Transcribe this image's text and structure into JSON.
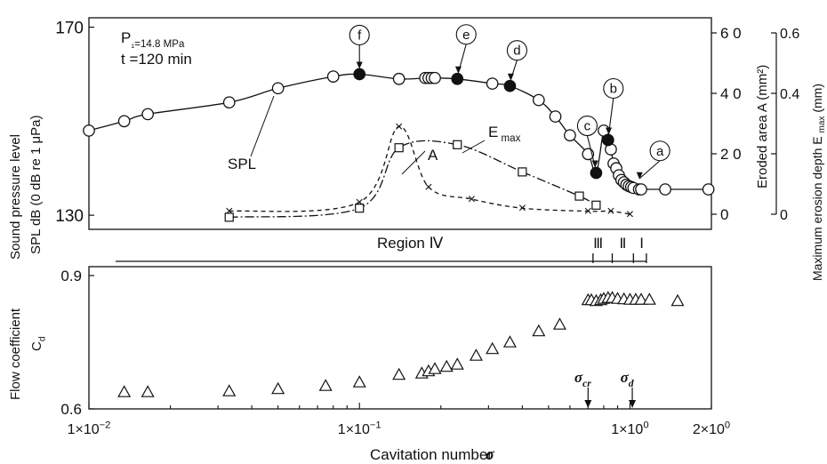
{
  "chart_data": [
    {
      "type": "line",
      "panel": "top",
      "xscale": "log",
      "xlim": [
        0.01,
        2.0
      ],
      "annotations": {
        "pressure": "P₁=14.8 MPa",
        "time": "t =120 min",
        "spl_label": "SPL",
        "a_label": "A",
        "emax_label": "E",
        "emax_sub": "max",
        "region_iv": "Region Ⅳ",
        "region_iii": "Ⅲ",
        "region_ii": "Ⅱ",
        "region_i": "Ⅰ"
      },
      "point_letters": [
        {
          "letter": "f",
          "x": 0.1,
          "y": 160
        },
        {
          "letter": "e",
          "x": 0.23,
          "y": 159
        },
        {
          "letter": "d",
          "x": 0.36,
          "y": 157.5
        },
        {
          "letter": "c",
          "x": 0.75,
          "y": 139
        },
        {
          "letter": "b",
          "x": 0.83,
          "y": 146
        },
        {
          "letter": "a",
          "x": 1.06,
          "y": 136.5
        }
      ],
      "region_boundaries": [
        0.73,
        0.86,
        1.03,
        1.15
      ],
      "left_axis": {
        "label_line1": "Sound pressure level",
        "label_line2": "SPL dB (0 dB re 1 μPa)",
        "ylim": [
          127,
          172
        ],
        "ticks": [
          130,
          170
        ],
        "tick_labels": [
          "130",
          "170"
        ]
      },
      "area_axis": {
        "label": "Eroded area A (mm²)",
        "ylim": [
          -5,
          65
        ],
        "ticks": [
          0,
          20,
          40,
          60
        ],
        "tick_labels": [
          "0",
          "2 0",
          "4 0",
          "6 0"
        ]
      },
      "emax_axis": {
        "label": "Maximum erosion depth E",
        "label_sub": "max",
        "label_unit": "(mm)",
        "ylim": [
          -0.05,
          0.65
        ],
        "ticks": [
          0,
          0.2,
          0.4,
          0.6
        ],
        "tick_labels": [
          "0",
          "",
          "0.4",
          "0.6"
        ]
      },
      "series": [
        {
          "name": "SPL",
          "marker": "circle",
          "axis": "left",
          "open": [
            {
              "x": 0.01,
              "y": 148
            },
            {
              "x": 0.0135,
              "y": 150
            },
            {
              "x": 0.0165,
              "y": 151.5
            },
            {
              "x": 0.033,
              "y": 154
            },
            {
              "x": 0.05,
              "y": 157
            },
            {
              "x": 0.08,
              "y": 159.5
            },
            {
              "x": 0.14,
              "y": 159
            },
            {
              "x": 0.175,
              "y": 159.2
            },
            {
              "x": 0.18,
              "y": 159.2
            },
            {
              "x": 0.185,
              "y": 159.2
            },
            {
              "x": 0.19,
              "y": 159.2
            },
            {
              "x": 0.31,
              "y": 158
            },
            {
              "x": 0.46,
              "y": 154.5
            },
            {
              "x": 0.53,
              "y": 151
            },
            {
              "x": 0.6,
              "y": 147
            },
            {
              "x": 0.7,
              "y": 143
            },
            {
              "x": 0.8,
              "y": 148
            },
            {
              "x": 0.85,
              "y": 144
            },
            {
              "x": 0.87,
              "y": 141
            },
            {
              "x": 0.89,
              "y": 140
            },
            {
              "x": 0.91,
              "y": 138.5
            },
            {
              "x": 0.93,
              "y": 137.5
            },
            {
              "x": 0.95,
              "y": 137
            },
            {
              "x": 0.97,
              "y": 136.5
            },
            {
              "x": 0.99,
              "y": 136.2
            },
            {
              "x": 1.01,
              "y": 136
            },
            {
              "x": 1.03,
              "y": 135.8
            },
            {
              "x": 1.08,
              "y": 135.5
            },
            {
              "x": 1.1,
              "y": 135.5
            },
            {
              "x": 1.35,
              "y": 135.5
            },
            {
              "x": 1.95,
              "y": 135.5
            }
          ],
          "filled": [
            {
              "x": 0.1,
              "y": 160
            },
            {
              "x": 0.23,
              "y": 159
            },
            {
              "x": 0.36,
              "y": 157.5
            },
            {
              "x": 0.75,
              "y": 139
            },
            {
              "x": 0.83,
              "y": 146
            }
          ]
        },
        {
          "name": "A",
          "marker": "square",
          "axis": "area",
          "points": [
            {
              "x": 0.033,
              "y": -1
            },
            {
              "x": 0.1,
              "y": 2
            },
            {
              "x": 0.14,
              "y": 22
            },
            {
              "x": 0.23,
              "y": 23
            },
            {
              "x": 0.4,
              "y": 14
            },
            {
              "x": 0.65,
              "y": 6
            },
            {
              "x": 0.75,
              "y": 3
            }
          ]
        },
        {
          "name": "E max",
          "marker": "x",
          "axis": "emax",
          "points": [
            {
              "x": 0.033,
              "y": 0.01
            },
            {
              "x": 0.1,
              "y": 0.04
            },
            {
              "x": 0.14,
              "y": 0.29
            },
            {
              "x": 0.18,
              "y": 0.09
            },
            {
              "x": 0.26,
              "y": 0.05
            },
            {
              "x": 0.4,
              "y": 0.02
            },
            {
              "x": 0.7,
              "y": 0.01
            },
            {
              "x": 0.85,
              "y": 0.01
            },
            {
              "x": 1.0,
              "y": 0.0
            }
          ]
        }
      ]
    },
    {
      "type": "scatter",
      "panel": "bottom",
      "xscale": "log",
      "xlim": [
        0.01,
        2.0
      ],
      "xlabel": "Cavitation number",
      "xlabel_symbol": "σ",
      "x_ticks": [
        0.01,
        0.1,
        1.0,
        2.0
      ],
      "x_tick_labels": [
        {
          "base": "1×10",
          "exp": "−2"
        },
        {
          "base": "1×10",
          "exp": "−1"
        },
        {
          "base": "1×10",
          "exp": "0"
        },
        {
          "base": "2×10",
          "exp": "0"
        }
      ],
      "ylabel_line1": "Flow coefficient",
      "ylabel_line2": "C",
      "ylabel_sub": "d",
      "ylim": [
        0.6,
        0.92
      ],
      "y_ticks": [
        0.6,
        0.9
      ],
      "y_tick_labels": [
        "0.6",
        "0.9"
      ],
      "markers": [
        {
          "symbol": "σ",
          "sub": "cr",
          "x": 0.7
        },
        {
          "symbol": "σ",
          "sub": "d",
          "x": 1.02
        }
      ],
      "series": [
        {
          "name": "Cd",
          "marker": "triangle",
          "points": [
            {
              "x": 0.0135,
              "y": 0.638
            },
            {
              "x": 0.0165,
              "y": 0.638
            },
            {
              "x": 0.033,
              "y": 0.64
            },
            {
              "x": 0.05,
              "y": 0.645
            },
            {
              "x": 0.075,
              "y": 0.652
            },
            {
              "x": 0.1,
              "y": 0.66
            },
            {
              "x": 0.14,
              "y": 0.677
            },
            {
              "x": 0.17,
              "y": 0.68
            },
            {
              "x": 0.18,
              "y": 0.685
            },
            {
              "x": 0.19,
              "y": 0.69
            },
            {
              "x": 0.21,
              "y": 0.695
            },
            {
              "x": 0.23,
              "y": 0.7
            },
            {
              "x": 0.27,
              "y": 0.72
            },
            {
              "x": 0.31,
              "y": 0.735
            },
            {
              "x": 0.36,
              "y": 0.75
            },
            {
              "x": 0.46,
              "y": 0.775
            },
            {
              "x": 0.55,
              "y": 0.79
            },
            {
              "x": 0.7,
              "y": 0.845
            },
            {
              "x": 0.72,
              "y": 0.845
            },
            {
              "x": 0.75,
              "y": 0.843
            },
            {
              "x": 0.78,
              "y": 0.845
            },
            {
              "x": 0.8,
              "y": 0.848
            },
            {
              "x": 0.83,
              "y": 0.85
            },
            {
              "x": 0.86,
              "y": 0.85
            },
            {
              "x": 0.9,
              "y": 0.848
            },
            {
              "x": 0.95,
              "y": 0.847
            },
            {
              "x": 1.0,
              "y": 0.846
            },
            {
              "x": 1.05,
              "y": 0.846
            },
            {
              "x": 1.1,
              "y": 0.846
            },
            {
              "x": 1.18,
              "y": 0.846
            },
            {
              "x": 1.5,
              "y": 0.843
            }
          ]
        }
      ]
    }
  ]
}
